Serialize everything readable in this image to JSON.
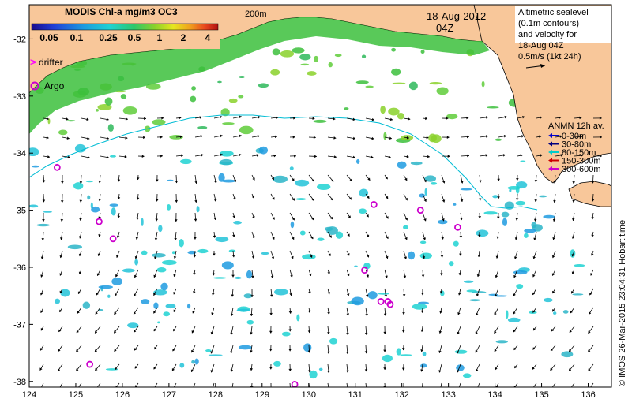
{
  "colorbar": {
    "title": "MODIS Chl-a mg/m3 OC3",
    "ticks": [
      "0.05",
      "0.1",
      "0.25",
      "0.5",
      "1",
      "2",
      "4"
    ],
    "colors": [
      "#1a0a8c",
      "#1f3fd6",
      "#1e9be0",
      "#1fd2d2",
      "#2ec86a",
      "#8ad12a",
      "#e6e61e",
      "#f0a01e",
      "#e8461e",
      "#b01010"
    ]
  },
  "legend_left": {
    "drifter_label": "drifter",
    "argo_label": "Argo",
    "drifter_color": "#ff00ff",
    "argo_color": "#cc00cc"
  },
  "date": {
    "date": "18-Aug-2012",
    "time": "04Z"
  },
  "contour_label": "200m",
  "altimetry": {
    "lines": [
      "Altimetric sealevel",
      "(0.1m contours)",
      "and velocity for",
      "18-Aug 04Z"
    ],
    "scale": "0.5m/s (1kt 24h)"
  },
  "anmn": {
    "title": "ANMN 12h av.",
    "items": [
      {
        "label": "0-30m",
        "color": "#0000cc"
      },
      {
        "label": "30-80m",
        "color": "#000080"
      },
      {
        "label": "80-150m",
        "color": "#00cccc"
      },
      {
        "label": "150-300m",
        "color": "#cc0000"
      },
      {
        "label": "300-600m",
        "color": "#cc00cc"
      }
    ]
  },
  "credit": "© IMOS 26-Mar-2015 23:04:31 Hobart time",
  "axes": {
    "x_ticks": [
      "124",
      "125",
      "126",
      "127",
      "128",
      "129",
      "130",
      "131",
      "132",
      "133",
      "134",
      "135",
      "136"
    ],
    "y_ticks": [
      "-32",
      "-33",
      "-34",
      "-35",
      "-36",
      "-37",
      "-38"
    ],
    "xlim": [
      124,
      136.5
    ],
    "ylim": [
      -38.1,
      -31.4
    ]
  },
  "argo_floats": [
    {
      "lon": 124.6,
      "lat": -34.25
    },
    {
      "lon": 125.5,
      "lat": -35.2
    },
    {
      "lon": 125.8,
      "lat": -35.5
    },
    {
      "lon": 125.3,
      "lat": -37.7
    },
    {
      "lon": 129.7,
      "lat": -38.05
    },
    {
      "lon": 131.2,
      "lat": -36.05
    },
    {
      "lon": 131.4,
      "lat": -34.9
    },
    {
      "lon": 131.55,
      "lat": -36.6
    },
    {
      "lon": 131.7,
      "lat": -36.6
    },
    {
      "lon": 131.75,
      "lat": -36.65
    },
    {
      "lon": 132.4,
      "lat": -35.0
    },
    {
      "lon": 133.2,
      "lat": -35.3
    }
  ]
}
